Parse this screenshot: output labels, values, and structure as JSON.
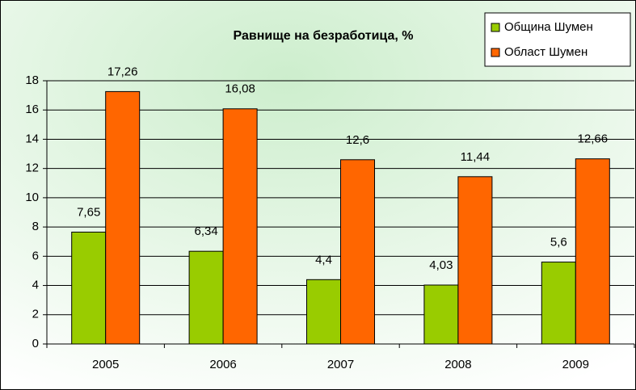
{
  "chart_data": {
    "type": "bar",
    "title": "Равнище на безработица, %",
    "categories": [
      "2005",
      "2006",
      "2007",
      "2008",
      "2009"
    ],
    "series": [
      {
        "name": "Община Шумен",
        "color": "#99cc00",
        "values": [
          7.65,
          6.34,
          4.4,
          4.03,
          5.6
        ],
        "value_labels": [
          "7,65",
          "6,34",
          "4,4",
          "4,03",
          "5,6"
        ]
      },
      {
        "name": "Област Шумен",
        "color": "#ff6600",
        "values": [
          17.26,
          16.08,
          12.6,
          11.44,
          12.66
        ],
        "value_labels": [
          "17,26",
          "16,08",
          "12,6",
          "11,44",
          "12,66"
        ]
      }
    ],
    "ylim": [
      0,
      18
    ],
    "yticks": [
      0,
      2,
      4,
      6,
      8,
      10,
      12,
      14,
      16,
      18
    ],
    "grid": true,
    "legend": "top-right"
  }
}
